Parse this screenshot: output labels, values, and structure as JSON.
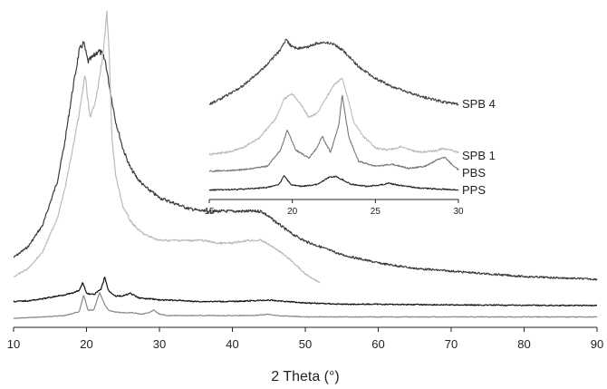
{
  "chart_data": [
    {
      "type": "line",
      "title": "",
      "xlabel": "2 Theta (°)",
      "ylabel": "",
      "xlim": [
        10,
        90
      ],
      "xticks": [
        10,
        20,
        30,
        40,
        50,
        60,
        70,
        80,
        90
      ],
      "grid": false,
      "series": [
        {
          "name": "",
          "color": "#3a3a3a",
          "x": [
            10,
            12,
            14,
            16,
            17,
            18,
            19,
            19.6,
            20.2,
            21,
            21.6,
            22.1,
            22.6,
            23.2,
            24,
            25,
            26,
            27,
            28,
            30,
            32,
            34,
            36,
            38,
            40,
            42,
            44,
            45,
            46,
            48,
            50,
            52,
            55,
            60,
            65,
            70,
            75,
            80,
            85,
            90
          ],
          "y": [
            0.1,
            0.14,
            0.22,
            0.38,
            0.52,
            0.7,
            0.86,
            0.89,
            0.82,
            0.84,
            0.86,
            0.85,
            0.82,
            0.72,
            0.6,
            0.5,
            0.43,
            0.39,
            0.36,
            0.32,
            0.3,
            0.28,
            0.27,
            0.27,
            0.27,
            0.27,
            0.27,
            0.25,
            0.23,
            0.19,
            0.16,
            0.14,
            0.11,
            0.08,
            0.06,
            0.05,
            0.04,
            0.03,
            0.025,
            0.02
          ]
        },
        {
          "name": "",
          "color": "#bbbbbb",
          "x": [
            10,
            12,
            14,
            16,
            17,
            18,
            19,
            19.8,
            20.5,
            21.5,
            22.3,
            22.8,
            23.1,
            23.5,
            24,
            25,
            26,
            27,
            28,
            30,
            32,
            34,
            36,
            38,
            40,
            42,
            44,
            46,
            48,
            50,
            52
          ],
          "y": [
            0.06,
            0.09,
            0.15,
            0.27,
            0.37,
            0.5,
            0.64,
            0.78,
            0.62,
            0.72,
            0.86,
            1.0,
            0.86,
            0.55,
            0.42,
            0.31,
            0.26,
            0.23,
            0.21,
            0.19,
            0.19,
            0.19,
            0.19,
            0.18,
            0.18,
            0.19,
            0.19,
            0.16,
            0.12,
            0.07,
            0.04
          ]
        },
        {
          "name": "",
          "color": "#111111",
          "x": [
            10,
            12,
            14,
            16,
            17,
            18,
            19,
            19.5,
            20,
            21,
            22,
            22.5,
            23,
            24,
            25,
            26,
            27,
            28,
            29,
            30,
            32,
            35,
            40,
            45,
            50,
            55,
            60,
            70,
            80,
            90
          ],
          "y": [
            0.03,
            0.035,
            0.05,
            0.07,
            0.08,
            0.09,
            0.11,
            0.17,
            0.09,
            0.08,
            0.12,
            0.21,
            0.11,
            0.07,
            0.07,
            0.09,
            0.06,
            0.05,
            0.05,
            0.04,
            0.04,
            0.03,
            0.03,
            0.04,
            0.02,
            0.01,
            0.01,
            0.005,
            0.002,
            0.0
          ]
        },
        {
          "name": "",
          "color": "#888888",
          "x": [
            10,
            14,
            17,
            19,
            19.6,
            20.2,
            21,
            21.8,
            22.5,
            23,
            23.6,
            25,
            26.4,
            27.5,
            28.5,
            29.2,
            30,
            31,
            33,
            36,
            40,
            43,
            45,
            46,
            48,
            50,
            55,
            60,
            70,
            80,
            90
          ],
          "y": [
            0.0,
            0.01,
            0.02,
            0.05,
            0.17,
            0.06,
            0.06,
            0.19,
            0.1,
            0.06,
            0.05,
            0.04,
            0.04,
            0.03,
            0.04,
            0.06,
            0.03,
            0.02,
            0.02,
            0.02,
            0.02,
            0.02,
            0.03,
            0.02,
            0.015,
            0.01,
            0.01,
            0.01,
            0.01,
            0.01,
            0.01
          ]
        }
      ]
    },
    {
      "type": "line",
      "title": "",
      "xlabel": "",
      "ylabel": "",
      "xlim": [
        15,
        30
      ],
      "xticks": [
        15,
        20,
        25,
        30
      ],
      "grid": false,
      "series": [
        {
          "name": "SPB 4",
          "color": "#444444",
          "x": [
            15,
            16,
            17,
            18,
            18.8,
            19.3,
            19.6,
            20.0,
            20.5,
            21,
            21.5,
            22,
            22.5,
            23,
            23.5,
            24,
            25,
            26,
            27,
            28,
            29,
            30
          ],
          "y": [
            0.0,
            0.12,
            0.27,
            0.47,
            0.67,
            0.8,
            0.95,
            0.84,
            0.82,
            0.85,
            0.9,
            0.91,
            0.88,
            0.8,
            0.68,
            0.55,
            0.38,
            0.26,
            0.17,
            0.1,
            0.04,
            0.0
          ]
        },
        {
          "name": "SPB 1",
          "color": "#bbbbbb",
          "x": [
            15,
            16,
            17,
            18,
            19,
            19.5,
            20,
            20.5,
            21,
            21.5,
            22,
            22.5,
            23,
            23.3,
            23.7,
            24.2,
            25,
            25.8,
            26.5,
            27.5,
            28.5,
            29,
            29.5,
            30
          ],
          "y": [
            0.05,
            0.08,
            0.15,
            0.3,
            0.6,
            0.9,
            0.98,
            0.82,
            0.62,
            0.68,
            0.9,
            1.12,
            1.22,
            0.95,
            0.55,
            0.35,
            0.15,
            0.12,
            0.17,
            0.09,
            0.1,
            0.14,
            0.12,
            0.08
          ]
        },
        {
          "name": "PBS",
          "color": "#777777",
          "x": [
            15,
            17,
            18.5,
            19.3,
            19.7,
            20.2,
            21,
            21.5,
            21.8,
            22.3,
            22.8,
            23.0,
            23.4,
            24,
            25,
            26,
            27,
            28,
            28.7,
            29.2,
            29.7,
            30
          ],
          "y": [
            0.02,
            0.05,
            0.12,
            0.45,
            0.85,
            0.45,
            0.28,
            0.5,
            0.72,
            0.4,
            0.95,
            1.55,
            0.7,
            0.22,
            0.12,
            0.16,
            0.08,
            0.12,
            0.25,
            0.3,
            0.12,
            0.05
          ]
        },
        {
          "name": "PPS",
          "color": "#222222",
          "x": [
            15,
            17,
            18.5,
            19.2,
            19.5,
            19.9,
            20.5,
            21.5,
            22.2,
            22.6,
            23,
            23.5,
            24.5,
            25.5,
            25.8,
            26.5,
            27.5,
            28.5,
            30
          ],
          "y": [
            0.02,
            0.06,
            0.15,
            0.3,
            0.75,
            0.3,
            0.2,
            0.3,
            0.65,
            0.7,
            0.55,
            0.32,
            0.2,
            0.3,
            0.36,
            0.25,
            0.13,
            0.08,
            0.02
          ]
        }
      ]
    }
  ]
}
